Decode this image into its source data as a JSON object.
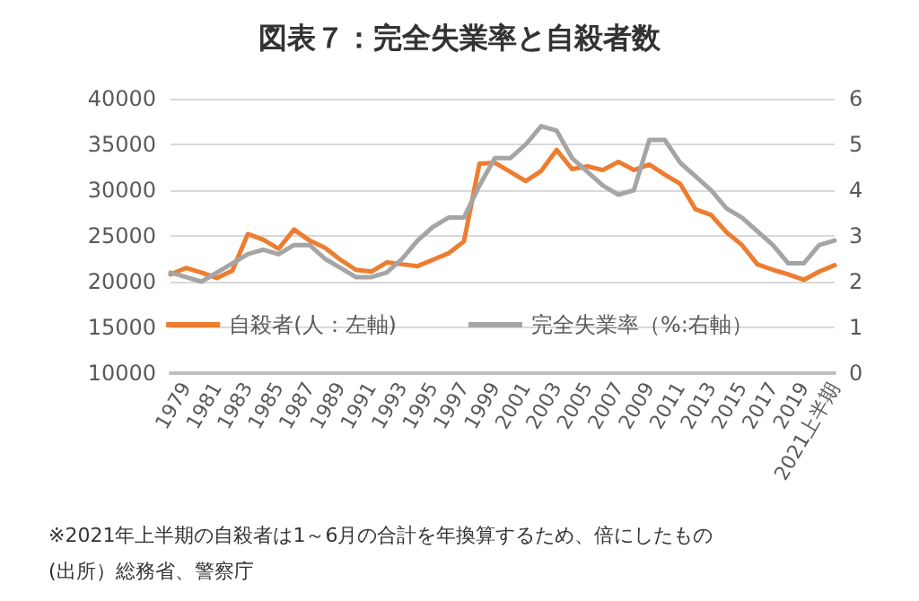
{
  "chart_data": {
    "type": "line",
    "title": "図表７：完全失業率と自殺者数",
    "categories": [
      null,
      "1979",
      null,
      "1981",
      null,
      "1983",
      null,
      "1985",
      null,
      "1987",
      null,
      "1989",
      null,
      "1991",
      null,
      "1993",
      null,
      "1995",
      null,
      "1997",
      null,
      "1999",
      null,
      "2001",
      null,
      "2003",
      null,
      "2005",
      null,
      "2007",
      null,
      "2009",
      null,
      "2011",
      null,
      "2013",
      null,
      "2015",
      null,
      "2017",
      null,
      "2019",
      null,
      "2021上半期"
    ],
    "series": [
      {
        "name": "自殺者(人：左軸)",
        "color": "#ed7d31",
        "values": [
          20800,
          21500,
          21000,
          20400,
          21200,
          25200,
          24600,
          23600,
          25700,
          24500,
          23700,
          22400,
          21300,
          21100,
          22100,
          21900,
          21700,
          22400,
          23100,
          24400,
          32900,
          33000,
          32000,
          31000,
          32100,
          34400,
          32300,
          32600,
          32200,
          33100,
          32200,
          32800,
          31700,
          30700,
          27900,
          27300,
          25400,
          24000,
          21900,
          21300,
          20800,
          20200,
          21100,
          21800
        ]
      },
      {
        "name": "完全失業率（%:右軸）",
        "color": "#a5a5a5",
        "axis": "y2",
        "values": [
          2.2,
          2.1,
          2.0,
          2.2,
          2.4,
          2.6,
          2.7,
          2.6,
          2.8,
          2.8,
          2.5,
          2.3,
          2.1,
          2.1,
          2.2,
          2.5,
          2.9,
          3.2,
          3.4,
          3.4,
          4.1,
          4.7,
          4.7,
          5.0,
          5.4,
          5.3,
          4.7,
          4.4,
          4.1,
          3.9,
          4.0,
          5.1,
          5.1,
          4.6,
          4.3,
          4.0,
          3.6,
          3.4,
          3.1,
          2.8,
          2.4,
          2.4,
          2.8,
          2.9
        ]
      }
    ],
    "ylim": [
      10000,
      40000
    ],
    "yticks": [
      10000,
      15000,
      20000,
      25000,
      30000,
      35000,
      40000
    ],
    "y2lim": [
      0,
      6
    ],
    "y2ticks": [
      0,
      1,
      2,
      3,
      4,
      5,
      6
    ],
    "grid": "y",
    "legend": "bottom",
    "marker": "none",
    "line_style": "solid",
    "annotations": [
      "※2021年上半期の自殺者は1～6月の合計を年換算するため、倍にしたもの",
      "(出所）総務省、警察庁"
    ]
  }
}
